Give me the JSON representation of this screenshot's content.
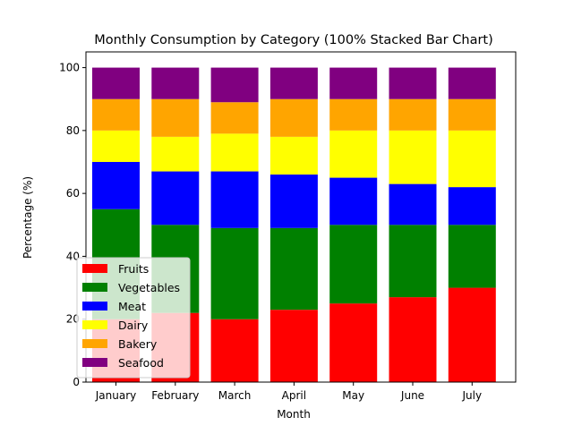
{
  "chart_data": {
    "type": "bar",
    "stacked": true,
    "normalized": "100%",
    "title": "Monthly Consumption by Category (100% Stacked Bar Chart)",
    "xlabel": "Month",
    "ylabel": "Percentage (%)",
    "ylim": [
      0,
      105
    ],
    "yticks": [
      0,
      20,
      40,
      60,
      80,
      100
    ],
    "categories": [
      "January",
      "February",
      "March",
      "April",
      "May",
      "June",
      "July"
    ],
    "series": [
      {
        "name": "Fruits",
        "color": "#ff0000",
        "values": [
          20,
          22,
          20,
          23,
          25,
          27,
          30
        ]
      },
      {
        "name": "Vegetables",
        "color": "#008000",
        "values": [
          35,
          28,
          29,
          26,
          25,
          23,
          20
        ]
      },
      {
        "name": "Meat",
        "color": "#0000ff",
        "values": [
          15,
          17,
          18,
          17,
          15,
          13,
          12
        ]
      },
      {
        "name": "Dairy",
        "color": "#ffff00",
        "values": [
          10,
          11,
          12,
          12,
          15,
          17,
          18
        ]
      },
      {
        "name": "Bakery",
        "color": "#ffa500",
        "values": [
          10,
          12,
          10,
          12,
          10,
          10,
          10
        ]
      },
      {
        "name": "Seafood",
        "color": "#800080",
        "values": [
          10,
          10,
          11,
          10,
          10,
          10,
          10
        ]
      }
    ],
    "grid": false,
    "legend_position": "lower-left"
  }
}
